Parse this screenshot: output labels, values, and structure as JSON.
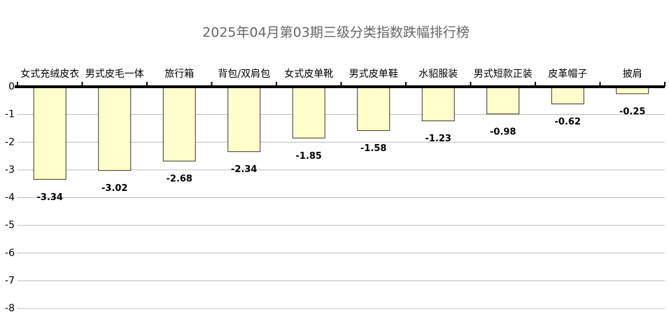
{
  "chart_data": {
    "type": "bar",
    "title": "2025年04月第03期三级分类指数跌幅排行榜",
    "categories": [
      "女式充绒皮衣",
      "男式皮毛一体",
      "旅行箱",
      "背包/双肩包",
      "女式皮单靴",
      "男式皮单鞋",
      "水貂服装",
      "男式短款正装",
      "皮革帽子",
      "披肩"
    ],
    "values": [
      -3.34,
      -3.02,
      -2.68,
      -2.34,
      -1.85,
      -1.58,
      -1.23,
      -0.98,
      -0.62,
      -0.25
    ],
    "color": "#ffffcc",
    "ylim": [
      -8,
      0
    ],
    "yticks": [
      0,
      -1,
      -2,
      -3,
      -4,
      -5,
      -6,
      -7,
      -8
    ],
    "grid": true
  }
}
